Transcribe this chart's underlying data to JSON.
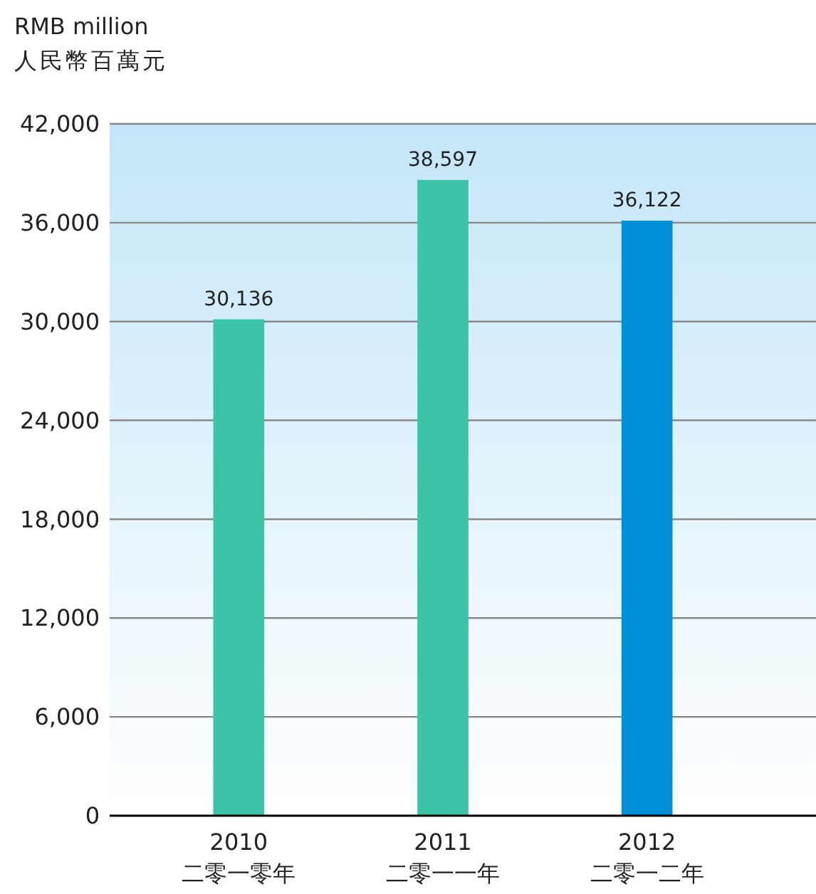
{
  "chart_data": {
    "type": "bar",
    "ylabel": "RMB million\n人民幣百萬元",
    "categories": [
      "2010\n二零一零年",
      "2011\n二零一一年",
      "2012\n二零一二年"
    ],
    "values": [
      30136,
      38597,
      36122
    ],
    "colors": [
      "#3cc4a8",
      "#3cc4a8",
      "#0090d8"
    ],
    "ylim": [
      0,
      42000
    ],
    "yticks": [
      {
        "value": 0,
        "label": "0"
      },
      {
        "value": 6000,
        "label": "6,000"
      },
      {
        "value": 12000,
        "label": "12,000"
      },
      {
        "value": 18000,
        "label": "18,000"
      },
      {
        "value": 24000,
        "label": "24,000"
      },
      {
        "value": 30000,
        "label": "30,000"
      },
      {
        "value": 36000,
        "label": "36,000"
      },
      {
        "value": 42000,
        "label": "42,000"
      }
    ],
    "value_labels": [
      "30,136",
      "38,597",
      "36,122"
    ],
    "grid": "y"
  }
}
